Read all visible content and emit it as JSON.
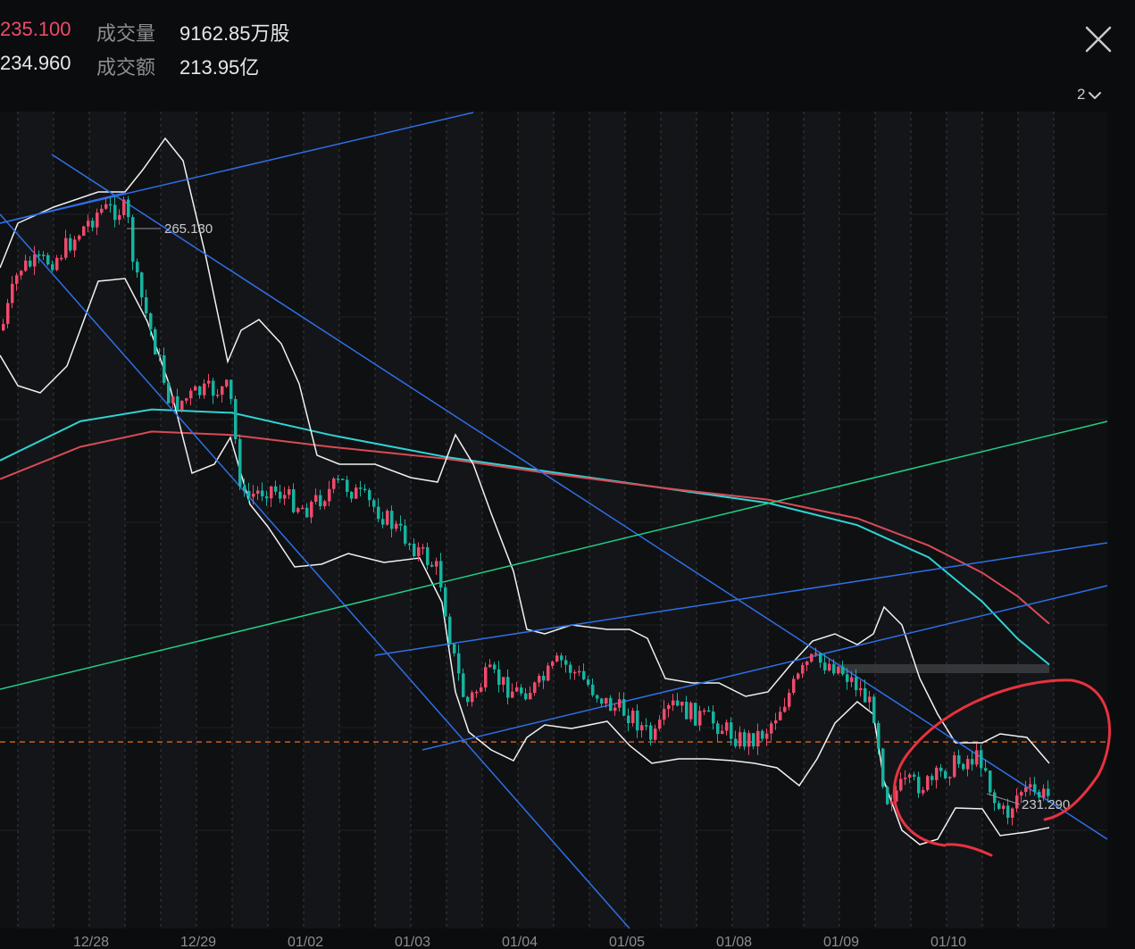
{
  "header": {
    "price_high_value": "235.100",
    "price_low_value": "234.960",
    "volume_label": "成交量",
    "volume_value": "9162.85万股",
    "turnover_label": "成交额",
    "turnover_value": "213.95亿"
  },
  "controls": {
    "close_icon": "close-icon",
    "period_value": "2",
    "period_icon": "chevron-down-icon"
  },
  "colors": {
    "up": "#ef4a6b",
    "down": "#16b3a0",
    "trendline": "#2f6fe8",
    "channel": "#1fcf84",
    "ma_cyan": "#2fd3d3",
    "ma_red": "#d94b55",
    "bollinger": "#f2f2f2",
    "current_price": "#ff7a2a",
    "annotation": "#e8323f"
  },
  "chart_data": {
    "type": "candlestick",
    "x_ticks": [
      "12/28",
      "12/29",
      "01/02",
      "01/03",
      "01/04",
      "01/05",
      "01/08",
      "01/09",
      "01/10"
    ],
    "y_range": [
      224,
      272
    ],
    "annotations": [
      {
        "label": "265.130",
        "value": 265.13,
        "kind": "high"
      },
      {
        "label": "231.290",
        "value": 231.29,
        "kind": "low"
      }
    ],
    "current_price": 234.96,
    "series": [
      {
        "kind": "moving-average",
        "color": "#2fd3d3",
        "values": [
          251.5,
          253.8,
          254.5,
          254.3,
          253.0,
          251.7,
          250.8,
          249.9,
          249.0,
          247.7,
          245.8,
          243.2,
          241.0,
          239.5
        ]
      },
      {
        "kind": "moving-average",
        "color": "#d94b55",
        "values": [
          250.4,
          252.3,
          253.2,
          253.0,
          252.3,
          251.6,
          250.7,
          249.9,
          249.2,
          248.1,
          246.5,
          244.9,
          243.5,
          241.9
        ]
      },
      {
        "kind": "bollinger",
        "color": "#f2f2f2"
      }
    ],
    "trend_lines": 7
  }
}
